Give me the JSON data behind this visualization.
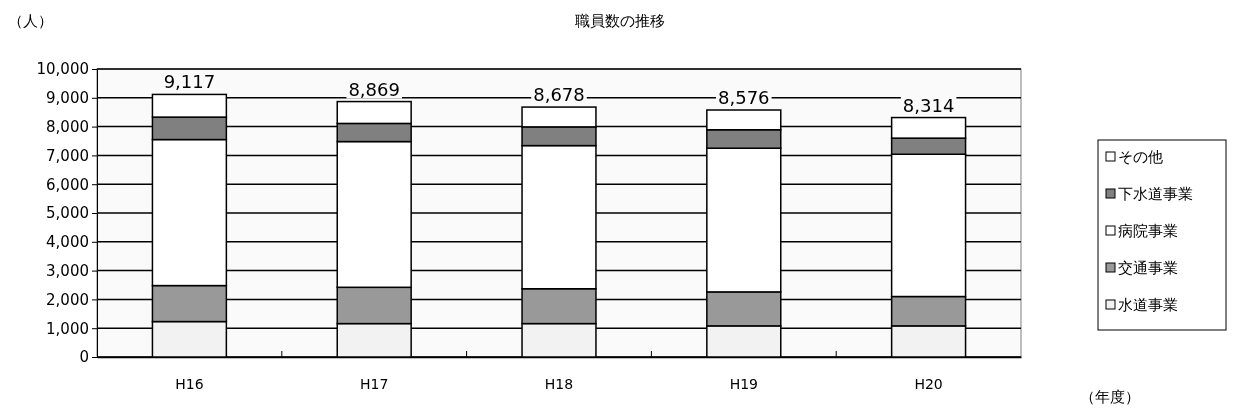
{
  "chart_data": {
    "type": "bar",
    "title": "職員数の推移",
    "ylabel": "（人）",
    "xlabel": "（年度）",
    "categories": [
      "H16",
      "H17",
      "H18",
      "H19",
      "H20"
    ],
    "stacked": true,
    "series": [
      {
        "name": "水道事業",
        "color": "#f2f2f2",
        "values": [
          1230,
          1160,
          1160,
          1080,
          1080
        ]
      },
      {
        "name": "交通事業",
        "color": "#999999",
        "values": [
          1250,
          1260,
          1210,
          1180,
          1020
        ]
      },
      {
        "name": "病院事業",
        "color": "#ffffff",
        "values": [
          5070,
          5060,
          4970,
          4990,
          4940
        ]
      },
      {
        "name": "下水道事業",
        "color": "#808080",
        "values": [
          780,
          630,
          650,
          640,
          560
        ]
      },
      {
        "name": "その他",
        "color": "#ffffff",
        "values": [
          787,
          759,
          688,
          686,
          714
        ]
      }
    ],
    "totals": [
      "9,117",
      "8,869",
      "8,678",
      "8,576",
      "8,314"
    ],
    "ylim": [
      0,
      10000
    ],
    "yticks": [
      {
        "value": 0,
        "label": "0"
      },
      {
        "value": 1000,
        "label": "1,000"
      },
      {
        "value": 2000,
        "label": "2,000"
      },
      {
        "value": 3000,
        "label": "3,000"
      },
      {
        "value": 4000,
        "label": "4,000"
      },
      {
        "value": 5000,
        "label": "5,000"
      },
      {
        "value": 6000,
        "label": "6,000"
      },
      {
        "value": 7000,
        "label": "7,000"
      },
      {
        "value": 8000,
        "label": "8,000"
      },
      {
        "value": 9000,
        "label": "9,000"
      },
      {
        "value": 10000,
        "label": "10,000"
      }
    ],
    "grid": "y",
    "legend": "right"
  }
}
